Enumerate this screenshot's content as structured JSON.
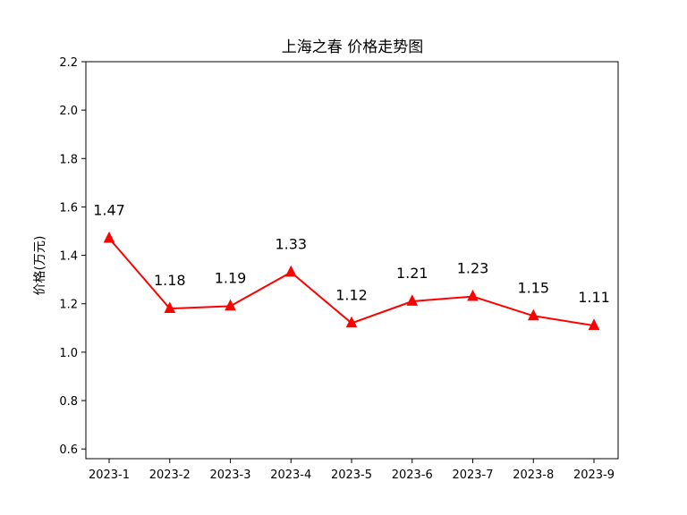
{
  "chart_data": {
    "type": "line",
    "title": "上海之春 价格走势图",
    "xlabel": "",
    "ylabel": "价格(万元)",
    "categories": [
      "2023-1",
      "2023-2",
      "2023-3",
      "2023-4",
      "2023-5",
      "2023-6",
      "2023-7",
      "2023-8",
      "2023-9"
    ],
    "series": [
      {
        "values": [
          1.47,
          1.18,
          1.19,
          1.33,
          1.12,
          1.21,
          1.23,
          1.15,
          1.11
        ],
        "data_labels": [
          "1.47",
          "1.18",
          "1.19",
          "1.33",
          "1.12",
          "1.21",
          "1.23",
          "1.15",
          "1.11"
        ],
        "color": "#ff0000",
        "marker": "triangle-up"
      }
    ],
    "ylim": [
      0.56,
      2.2
    ],
    "yticks": [
      0.6,
      0.8,
      1.0,
      1.2,
      1.4,
      1.6,
      1.8,
      2.0,
      2.2
    ],
    "ytick_labels": [
      "0.6",
      "0.8",
      "1.0",
      "1.2",
      "1.4",
      "1.6",
      "1.8",
      "2.0",
      "2.2"
    ],
    "grid": false,
    "legend": "none"
  }
}
